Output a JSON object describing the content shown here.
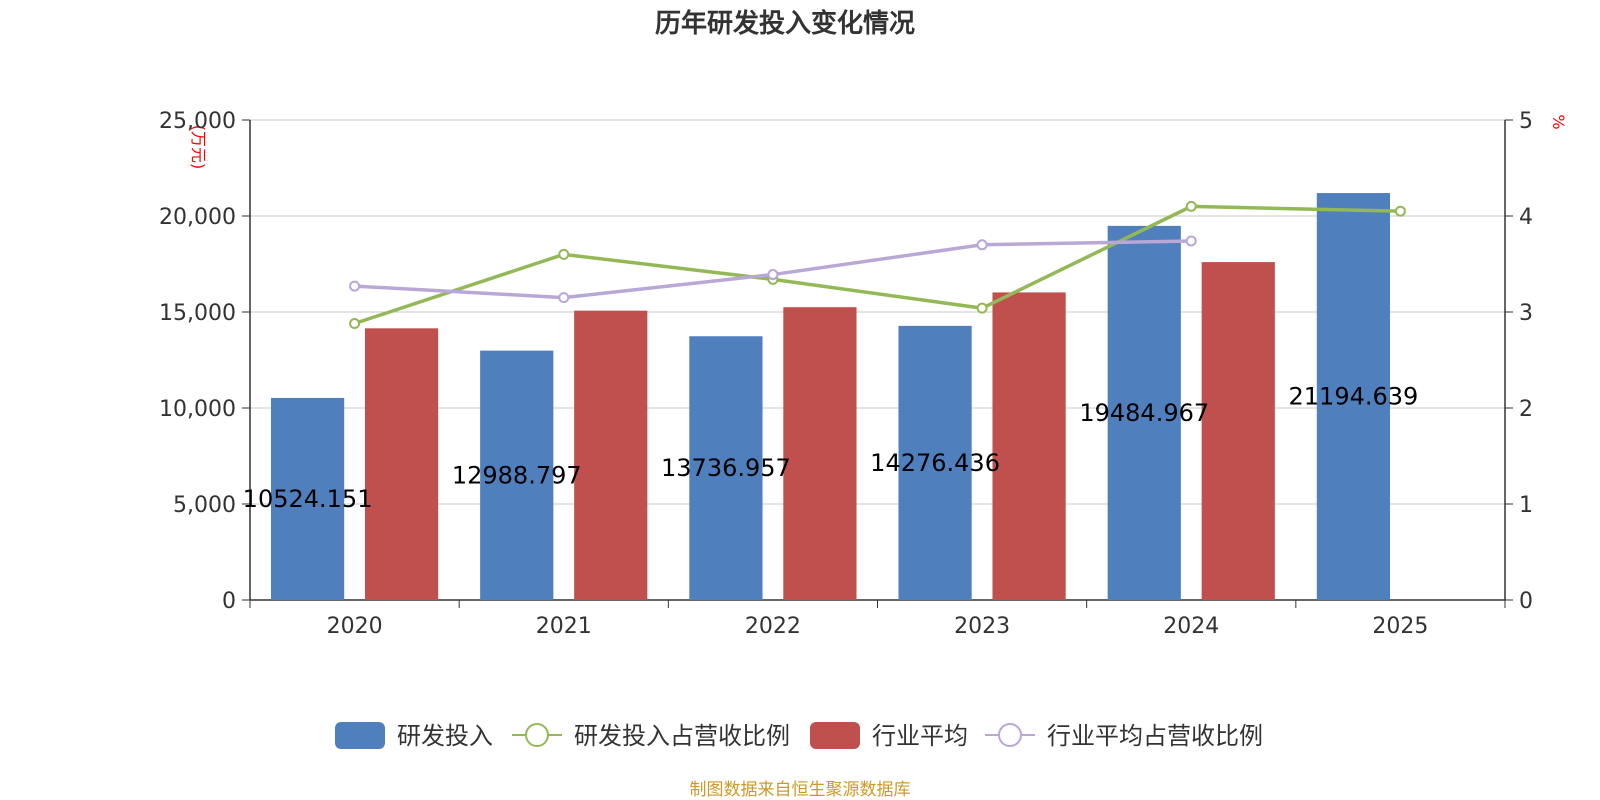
{
  "chart_data": {
    "type": "bar",
    "title": "历年研发投入变化情况",
    "categories": [
      "2020",
      "2021",
      "2022",
      "2023",
      "2024",
      "2025"
    ],
    "y_left": {
      "unit": "(万元)",
      "min": 0,
      "max": 25000,
      "ticks": [
        "0",
        "5,000",
        "10,000",
        "15,000",
        "20,000",
        "25,000"
      ],
      "tick_values": [
        0,
        5000,
        10000,
        15000,
        20000,
        25000
      ]
    },
    "y_right": {
      "unit": "%",
      "min": 0,
      "max": 5,
      "ticks": [
        "0",
        "1",
        "2",
        "3",
        "4",
        "5"
      ],
      "tick_values": [
        0,
        1,
        2,
        3,
        4,
        5
      ]
    },
    "series": [
      {
        "name": "研发投入",
        "type": "bar",
        "axis": "left",
        "color": "#4f7fbd",
        "values": [
          10524.151,
          12988.797,
          13736.957,
          14276.436,
          19484.967,
          21194.639
        ],
        "labels": [
          "10524.151",
          "12988.797",
          "13736.957",
          "14276.436",
          "19484.967",
          "21194.639"
        ]
      },
      {
        "name": "研发投入占营收比例",
        "type": "line",
        "axis": "right",
        "color": "#93b957",
        "values": [
          2.88,
          3.6,
          3.34,
          3.04,
          4.1,
          4.05
        ]
      },
      {
        "name": "行业平均",
        "type": "bar",
        "axis": "left",
        "color": "#c0504d",
        "values": [
          14150,
          15070,
          15250,
          16020,
          17600,
          null
        ]
      },
      {
        "name": "行业平均占营收比例",
        "type": "line",
        "axis": "right",
        "color": "#b9a7d5",
        "values": [
          3.27,
          3.15,
          3.39,
          3.7,
          3.74,
          null
        ]
      }
    ],
    "grid": true,
    "legend_position": "bottom-center",
    "source_note": "制图数据来自恒生聚源数据库",
    "source_color": "#cc9a2a"
  }
}
